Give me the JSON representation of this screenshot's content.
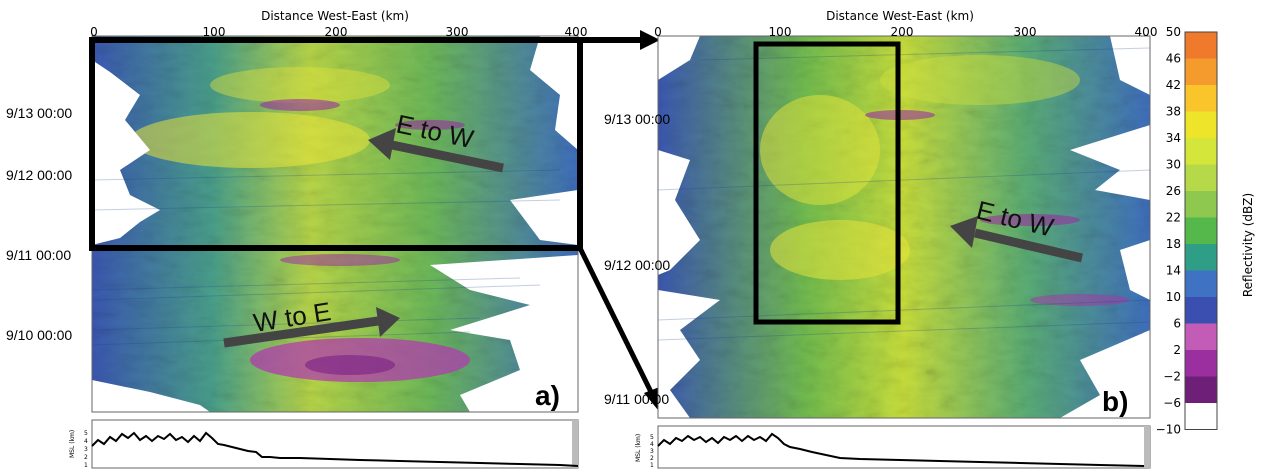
{
  "chart_data": [
    {
      "type": "heatmap",
      "panel_label": "a)",
      "xlabel": "Distance West-East (km)",
      "x_ticks": [
        "0",
        "100",
        "200",
        "300",
        "400"
      ],
      "xlim": [
        0,
        400
      ],
      "y_ticks": [
        "9/10 00:00",
        "9/11 00:00",
        "9/12 00:00",
        "9/13 00:00"
      ],
      "annotations": [
        "E to W",
        "W to E"
      ],
      "terrain_label": "MSL (km)",
      "terrain_ticks": [
        "1",
        "2",
        "3",
        "4",
        "5"
      ],
      "highlight_box": {
        "x_km": [
          0,
          400
        ],
        "time": [
          "9/11 00:00",
          "9/13 end"
        ]
      }
    },
    {
      "type": "heatmap",
      "panel_label": "b)",
      "xlabel": "Distance West-East (km)",
      "x_ticks": [
        "0",
        "100",
        "200",
        "300",
        "400"
      ],
      "xlim": [
        0,
        400
      ],
      "y_ticks": [
        "9/11 00:00",
        "9/12 00:00",
        "9/13 00:00"
      ],
      "annotations": [
        "E to W"
      ],
      "terrain_label": "MSL (km)",
      "terrain_ticks": [
        "1",
        "2",
        "3",
        "4",
        "5"
      ],
      "highlight_box": {
        "x_km": [
          80,
          200
        ]
      }
    }
  ],
  "colorbar": {
    "label": "Reflectivity (dBZ)",
    "ticks": [
      "50",
      "46",
      "42",
      "38",
      "34",
      "30",
      "26",
      "22",
      "18",
      "14",
      "10",
      "6",
      "2",
      "−2",
      "−6",
      "−10"
    ],
    "colors": [
      "#f07a2c",
      "#f59b2e",
      "#f9c52a",
      "#eee42a",
      "#d5e63a",
      "#b6d94a",
      "#8ec84e",
      "#55b84a",
      "#2f9e86",
      "#3f72c2",
      "#3a4fb0",
      "#c25cb6",
      "#9c2fa0",
      "#6e1f78",
      "#ffffff"
    ]
  }
}
